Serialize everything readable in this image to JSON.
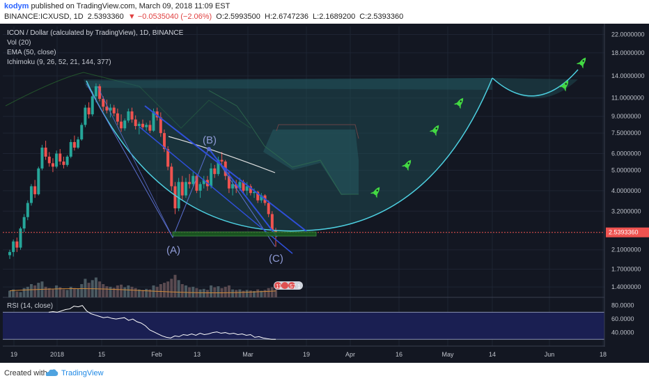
{
  "header": {
    "author": "kodym",
    "published_text": "published on TradingView.com, March 09, 2018 11:09 EST",
    "symbol": "BINANCE:ICXUSD, 1D",
    "last": "2.5393360",
    "change": "▼ −0.0535040 (−2.06%)",
    "open": "O:2.5993500",
    "high": "H:2.6747236",
    "low": "L:2.1689200",
    "close": "C:2.5393360"
  },
  "legend": {
    "title": "ICON / Dollar (calculated by TradingView), 1D, BINANCE",
    "vol": "Vol (20)",
    "ema": "EMA (50, close)",
    "ichimoku": "Ichimoku (9, 26, 52, 21, 144, 377)",
    "rsi": "RSI (14, close)"
  },
  "annotations": {
    "a": "(A)",
    "b": "(B)",
    "c": "(C)",
    "badge_left": "11",
    "badge_right": "57 1"
  },
  "price_tag": "2.5393360",
  "colors": {
    "background": "#131722",
    "up": "#26a69a",
    "down": "#ef5350",
    "ema": "#e0e0e0",
    "cup": "#4dd0e1",
    "channel": "#2f4fd8",
    "rsi": "#ffffff",
    "rsi_band": "#1a1f52",
    "rocket": "#43d943"
  },
  "footer": {
    "created_with": "Created with",
    "brand": "TradingView"
  },
  "chart_data": {
    "type": "candlestick",
    "price_axis": {
      "scale": "log",
      "ticks": [
        "22.0000000",
        "18.0000000",
        "14.0000000",
        "11.0000000",
        "9.0000000",
        "7.5000000",
        "6.0000000",
        "5.0000000",
        "4.0000000",
        "3.2000000",
        "2.1000000",
        "1.7000000",
        "1.4000000"
      ],
      "tick_values": [
        22,
        18,
        14,
        11,
        9,
        7.5,
        6,
        5,
        4,
        3.2,
        2.1,
        1.7,
        1.4
      ]
    },
    "rsi_axis": {
      "ticks": [
        "80.0000",
        "60.0000",
        "40.0000"
      ],
      "tick_values": [
        80,
        60,
        40
      ],
      "band": [
        30,
        70
      ]
    },
    "time_axis": {
      "labels": [
        "19",
        "2018",
        "15",
        "Feb",
        "13",
        "Mar",
        "19",
        "Apr",
        "16",
        "May",
        "14",
        "Jun",
        "18"
      ]
    },
    "candles": [
      [
        1.98,
        2.1,
        1.9,
        2.05
      ],
      [
        2.05,
        2.35,
        1.95,
        2.3
      ],
      [
        2.3,
        2.4,
        2.05,
        2.15
      ],
      [
        2.15,
        2.7,
        2.1,
        2.65
      ],
      [
        2.65,
        3.1,
        2.55,
        3.0
      ],
      [
        3.0,
        3.6,
        2.9,
        3.5
      ],
      [
        3.5,
        4.3,
        3.4,
        4.2
      ],
      [
        4.2,
        4.5,
        3.7,
        3.85
      ],
      [
        3.85,
        5.2,
        3.8,
        5.1
      ],
      [
        5.1,
        6.6,
        5.0,
        6.4
      ],
      [
        6.4,
        6.9,
        5.6,
        5.8
      ],
      [
        5.8,
        6.1,
        5.2,
        5.4
      ],
      [
        5.4,
        5.7,
        4.9,
        5.2
      ],
      [
        5.2,
        6.2,
        5.1,
        6.0
      ],
      [
        6.0,
        6.3,
        5.3,
        5.5
      ],
      [
        5.5,
        5.8,
        5.1,
        5.3
      ],
      [
        5.3,
        5.9,
        5.2,
        5.8
      ],
      [
        5.8,
        7.0,
        5.7,
        6.8
      ],
      [
        6.8,
        7.3,
        6.2,
        6.4
      ],
      [
        6.4,
        7.2,
        6.3,
        7.0
      ],
      [
        7.0,
        8.4,
        6.9,
        8.2
      ],
      [
        8.2,
        10.2,
        8.0,
        9.9
      ],
      [
        9.9,
        10.5,
        8.8,
        9.2
      ],
      [
        9.2,
        11.8,
        9.0,
        11.2
      ],
      [
        11.2,
        12.9,
        10.5,
        12.5
      ],
      [
        12.5,
        12.8,
        10.6,
        10.9
      ],
      [
        10.9,
        11.2,
        9.5,
        10.0
      ],
      [
        10.0,
        10.8,
        9.3,
        9.6
      ],
      [
        9.6,
        10.3,
        8.9,
        9.9
      ],
      [
        9.9,
        10.2,
        9.0,
        9.3
      ],
      [
        9.3,
        9.8,
        8.2,
        8.5
      ],
      [
        8.5,
        9.2,
        7.6,
        7.9
      ],
      [
        7.9,
        8.8,
        7.7,
        8.6
      ],
      [
        8.6,
        9.8,
        8.4,
        9.5
      ],
      [
        9.5,
        9.9,
        8.4,
        8.7
      ],
      [
        8.7,
        9.1,
        7.8,
        8.1
      ],
      [
        8.1,
        8.5,
        7.4,
        8.3
      ],
      [
        8.3,
        8.7,
        7.8,
        8.0
      ],
      [
        8.0,
        8.4,
        7.7,
        8.2
      ],
      [
        8.2,
        8.6,
        7.5,
        7.7
      ],
      [
        7.7,
        9.8,
        7.6,
        9.5
      ],
      [
        9.5,
        9.9,
        8.6,
        8.9
      ],
      [
        8.9,
        9.4,
        7.2,
        7.5
      ],
      [
        7.5,
        7.8,
        6.1,
        6.3
      ],
      [
        6.3,
        6.5,
        5.0,
        5.2
      ],
      [
        5.2,
        5.4,
        4.0,
        4.2
      ],
      [
        4.2,
        4.4,
        3.1,
        3.3
      ],
      [
        3.3,
        4.6,
        3.2,
        4.4
      ],
      [
        4.4,
        4.7,
        3.6,
        3.8
      ],
      [
        3.8,
        4.6,
        3.7,
        4.4
      ],
      [
        4.4,
        4.8,
        4.1,
        4.3
      ],
      [
        4.3,
        4.9,
        4.2,
        4.7
      ],
      [
        4.7,
        4.8,
        3.9,
        4.0
      ],
      [
        4.0,
        4.4,
        3.7,
        4.3
      ],
      [
        4.3,
        4.7,
        4.1,
        4.5
      ],
      [
        4.5,
        4.7,
        4.0,
        4.2
      ],
      [
        4.2,
        5.4,
        4.1,
        5.1
      ],
      [
        5.1,
        5.3,
        4.6,
        4.8
      ],
      [
        4.8,
        5.8,
        4.7,
        5.6
      ],
      [
        5.6,
        6.1,
        5.3,
        5.5
      ],
      [
        5.5,
        5.6,
        4.5,
        4.7
      ],
      [
        4.7,
        4.9,
        3.9,
        4.1
      ],
      [
        4.1,
        4.5,
        3.8,
        4.3
      ],
      [
        4.3,
        4.5,
        3.9,
        4.1
      ],
      [
        4.1,
        4.6,
        4.0,
        4.4
      ],
      [
        4.4,
        4.5,
        3.9,
        4.0
      ],
      [
        4.0,
        4.4,
        3.8,
        4.2
      ],
      [
        4.2,
        4.3,
        3.8,
        3.9
      ],
      [
        3.9,
        4.1,
        3.7,
        3.95
      ],
      [
        3.95,
        4.0,
        3.5,
        3.6
      ],
      [
        3.6,
        3.9,
        3.5,
        3.8
      ],
      [
        3.8,
        3.85,
        3.4,
        3.5
      ],
      [
        3.5,
        3.6,
        3.0,
        3.1
      ],
      [
        3.1,
        3.2,
        2.55,
        2.6
      ],
      [
        2.6,
        2.67,
        2.17,
        2.54
      ]
    ],
    "volume": [
      0.25,
      0.3,
      0.22,
      0.2,
      0.35,
      0.4,
      0.5,
      0.45,
      0.55,
      0.6,
      0.4,
      0.35,
      0.3,
      0.45,
      0.38,
      0.3,
      0.28,
      0.4,
      0.35,
      0.33,
      0.5,
      0.7,
      0.55,
      0.65,
      0.75,
      0.6,
      0.5,
      0.42,
      0.4,
      0.36,
      0.45,
      0.48,
      0.38,
      0.45,
      0.4,
      0.35,
      0.3,
      0.28,
      0.32,
      0.3,
      0.45,
      0.4,
      0.5,
      0.55,
      0.6,
      0.7,
      0.85,
      0.65,
      0.5,
      0.45,
      0.38,
      0.4,
      0.35,
      0.3,
      0.32,
      0.28,
      0.45,
      0.38,
      0.42,
      0.35,
      0.4,
      0.45,
      0.3,
      0.28,
      0.3,
      0.25,
      0.28,
      0.26,
      0.24,
      0.3,
      0.25,
      0.28,
      0.35,
      0.38,
      0.3
    ],
    "ema": [
      7.0,
      6.9,
      6.8,
      6.7,
      6.6,
      6.5,
      6.4,
      6.3,
      6.2,
      6.1,
      6.0,
      5.9,
      5.8,
      5.7,
      5.6
    ],
    "rsi": [
      70,
      71,
      70,
      72,
      74,
      75,
      79,
      78,
      80,
      72,
      68,
      66,
      64,
      62,
      63,
      61,
      60,
      61,
      62,
      58,
      60,
      56,
      54,
      50,
      44,
      41,
      38,
      35,
      33,
      32,
      35,
      34,
      37,
      36,
      38,
      36,
      39,
      37,
      38,
      40,
      41,
      39,
      40,
      38,
      39,
      37,
      38,
      36,
      37,
      33,
      34,
      32,
      31,
      30,
      30
    ],
    "legend_entries": [
      "Vol (20)",
      "EMA (50, close)",
      "Ichimoku (9, 26, 52, 21, 144, 377)",
      "RSI (14, close)"
    ]
  }
}
